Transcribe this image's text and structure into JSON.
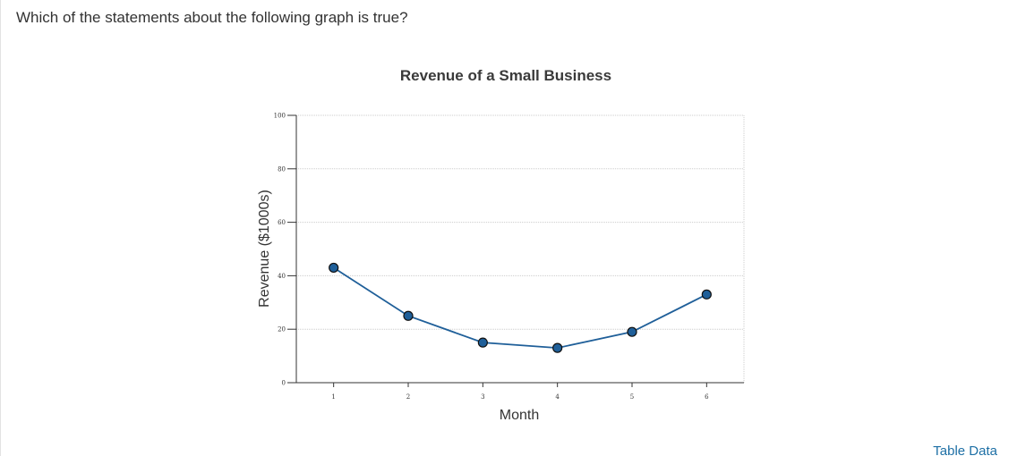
{
  "question": {
    "text": "Which of the statements about the following graph is true?"
  },
  "table_link": {
    "label": "Table Data"
  },
  "colors": {
    "series_line": "#1f5f99",
    "marker_fill": "#1f5f99",
    "marker_stroke": "#111111",
    "axis": "#333333",
    "grid": "#cccccc"
  },
  "chart_data": {
    "type": "line",
    "title": "Revenue of a Small Business",
    "xlabel": "Month",
    "ylabel": "Revenue ($1000s)",
    "x": [
      1,
      2,
      3,
      4,
      5,
      6
    ],
    "series": [
      {
        "values": [
          43,
          25,
          15,
          13,
          19,
          33
        ]
      }
    ],
    "xlim": [
      0.5,
      6.5
    ],
    "ylim": [
      0,
      100
    ],
    "x_ticks": [
      "1",
      "2",
      "3",
      "4",
      "5",
      "6"
    ],
    "y_ticks": [
      "0",
      "20",
      "40",
      "60",
      "80",
      "100"
    ],
    "grid": "horizontal dotted",
    "markers": "circle",
    "legend": "none"
  }
}
